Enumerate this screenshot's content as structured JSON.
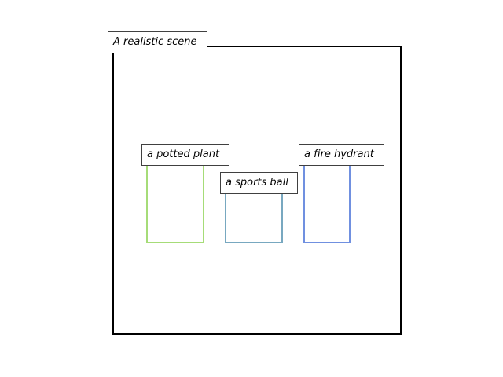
{
  "scene": {
    "label": "A realistic scene"
  },
  "objects": [
    {
      "label": "a potted plant",
      "color": "#a6dc78"
    },
    {
      "label": "a sports ball",
      "color": "#78a8c0"
    },
    {
      "label": "a fire hydrant",
      "color": "#7090e0"
    }
  ]
}
